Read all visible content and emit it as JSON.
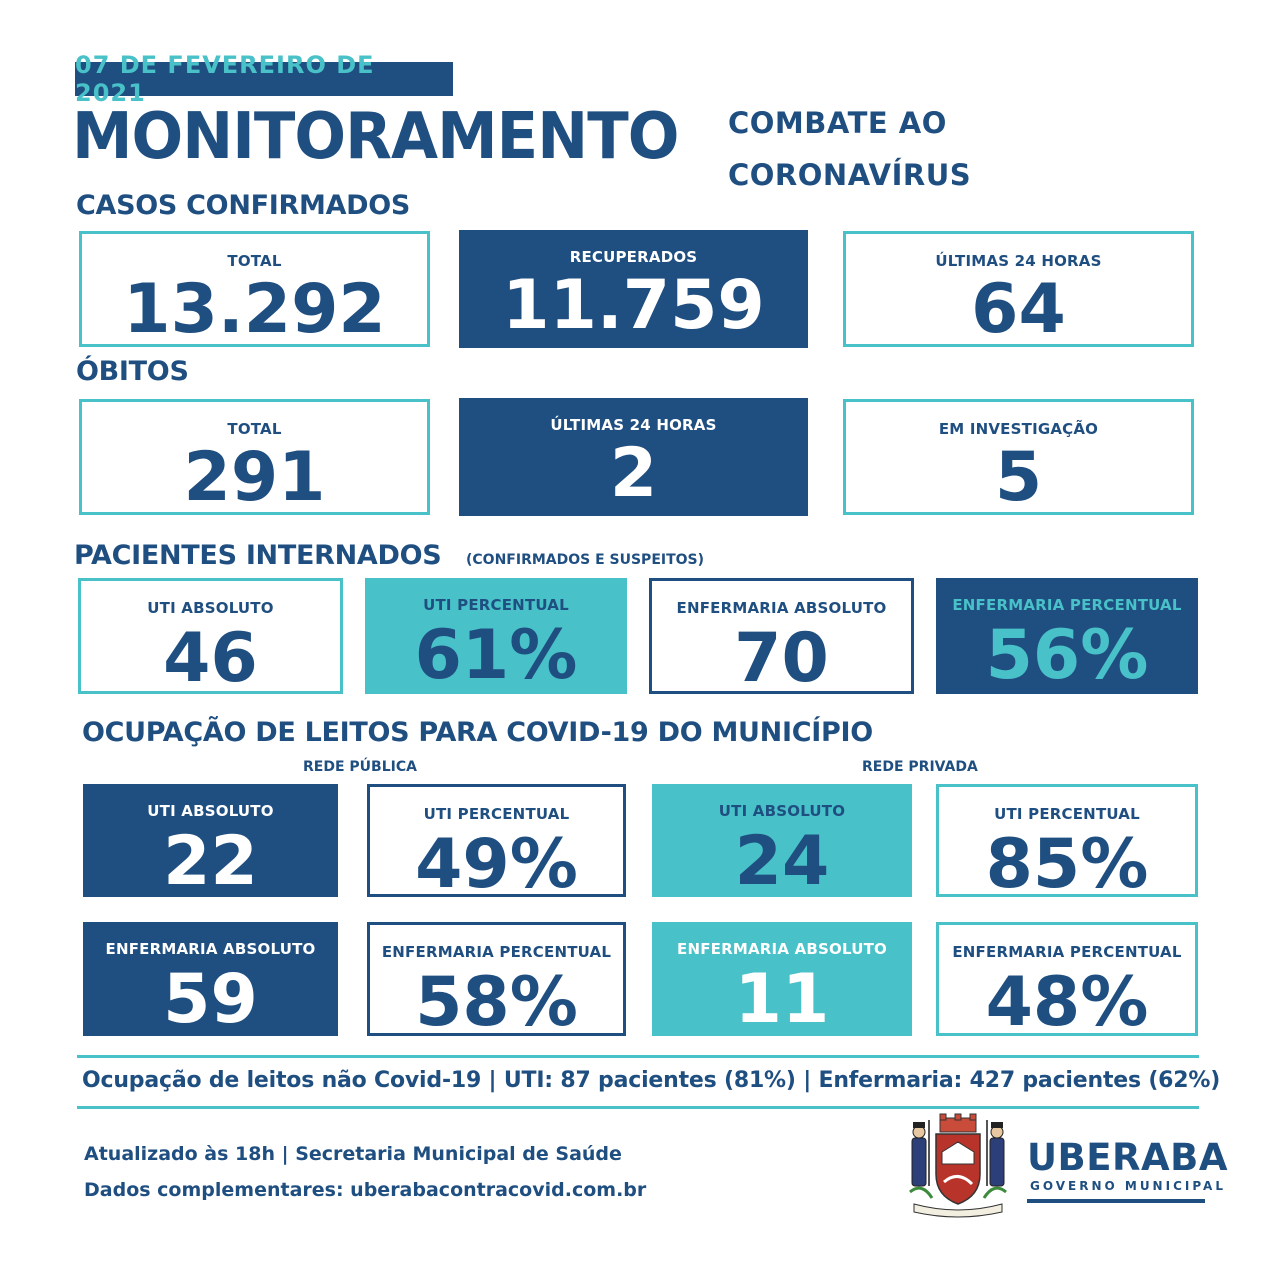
{
  "date": "07 DE FEVEREIRO DE 2021",
  "title": "MONITORAMENTO",
  "subtitle_line1": "COMBATE AO",
  "subtitle_line2": "CORONAVÍRUS",
  "casos": {
    "heading": "CASOS CONFIRMADOS",
    "total_label": "TOTAL",
    "total_value": "13.292",
    "recuperados_label": "RECUPERADOS",
    "recuperados_value": "11.759",
    "ultimas_label": "ÚLTIMAS 24 HORAS",
    "ultimas_value": "64"
  },
  "obitos": {
    "heading": "ÓBITOS",
    "total_label": "TOTAL",
    "total_value": "291",
    "ultimas_label": "ÚLTIMAS 24 HORAS",
    "ultimas_value": "2",
    "investigacao_label": "EM INVESTIGAÇÃO",
    "investigacao_value": "5"
  },
  "internados": {
    "heading": "PACIENTES INTERNADOS",
    "note": "(CONFIRMADOS E SUSPEITOS)",
    "uti_abs_label": "UTI ABSOLUTO",
    "uti_abs_value": "46",
    "uti_pct_label": "UTI PERCENTUAL",
    "uti_pct_value": "61%",
    "enf_abs_label": "ENFERMARIA ABSOLUTO",
    "enf_abs_value": "70",
    "enf_pct_label": "ENFERMARIA PERCENTUAL",
    "enf_pct_value": "56%"
  },
  "ocupacao": {
    "heading": "OCUPAÇÃO DE LEITOS PARA COVID-19 DO MUNICÍPIO",
    "publica_label": "REDE PÚBLICA",
    "privada_label": "REDE PRIVADA",
    "pub_uti_abs_label": "UTI ABSOLUTO",
    "pub_uti_abs_value": "22",
    "pub_uti_pct_label": "UTI PERCENTUAL",
    "pub_uti_pct_value": "49%",
    "priv_uti_abs_label": "UTI ABSOLUTO",
    "priv_uti_abs_value": "24",
    "priv_uti_pct_label": "UTI PERCENTUAL",
    "priv_uti_pct_value": "85%",
    "pub_enf_abs_label": "ENFERMARIA ABSOLUTO",
    "pub_enf_abs_value": "59",
    "pub_enf_pct_label": "ENFERMARIA PERCENTUAL",
    "pub_enf_pct_value": "58%",
    "priv_enf_abs_label": "ENFERMARIA ABSOLUTO",
    "priv_enf_abs_value": "11",
    "priv_enf_pct_label": "ENFERMARIA PERCENTUAL",
    "priv_enf_pct_value": "48%"
  },
  "nao_covid": "Ocupação de leitos não Covid-19 | UTI: 87 pacientes (81%) | Enfermaria: 427 pacientes (62%)",
  "footer_line1": "Atualizado às 18h | Secretaria Municipal de Saúde",
  "footer_line2": "Dados complementares: uberabacontracovid.com.br",
  "logo": {
    "name": "UBERABA",
    "sub": "GOVERNO MUNICIPAL",
    "coat_motto": "INDEPENDE PRO BRASILIA"
  },
  "colors": {
    "navy": "#1f4e80",
    "teal": "#49c1c8",
    "white": "#ffffff"
  }
}
